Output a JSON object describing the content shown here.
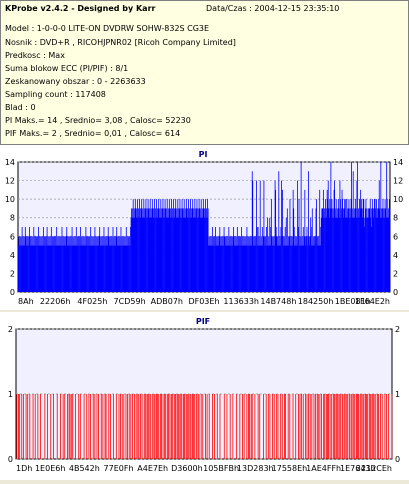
{
  "header": {
    "title": "KProbe v2.4.2 - Designed by Karr",
    "datetime": "Data/Czas : 2004-12-15 23:35:10",
    "lines": [
      "Model : 1-0-0-0 LITE-ON DVDRW SOHW-832S  CG3E",
      "Nosnik : DVD+R , RICOHJPNR02 [Ricoh Company Limited]",
      "Predkosc : Max",
      "Suma blokow ECC (PI/PIF) : 8/1",
      "Zeskanowany obszar : 0 - 2263633",
      "Sampling count : 117408",
      "Blad : 0",
      "PI Maks.= 14 , Srednio= 3,08 , Calosc= 52230",
      "PIF Maks.= 2 , Srednio= 0,01 , Calosc= 614"
    ]
  },
  "chart_data": [
    {
      "type": "bar",
      "title": "PI",
      "color": "#0000ff",
      "ylim": [
        0,
        14
      ],
      "yticks": [
        "0",
        "2",
        "4",
        "6",
        "8",
        "10",
        "12",
        "14"
      ],
      "xticks": [
        "8Ah",
        "22206h",
        "4F025h",
        "7CD59h",
        "ADB07h",
        "DF03Eh",
        "113633h",
        "14B748h",
        "184250h",
        "1BE081h",
        "1F64E2h"
      ],
      "series": [
        {
          "values": [
            5,
            6,
            5,
            6,
            5,
            6,
            5,
            7,
            5,
            6,
            5,
            6,
            5,
            7,
            6,
            5,
            6,
            5,
            6,
            5,
            6,
            7,
            5,
            6,
            5,
            6,
            5,
            6,
            5,
            7,
            6,
            5,
            6,
            5,
            6,
            5,
            6,
            5,
            7,
            5,
            6,
            5,
            6,
            5,
            6,
            5,
            6,
            7,
            5,
            6,
            5,
            6,
            5,
            6,
            7,
            5,
            6,
            5,
            6,
            5,
            6,
            5,
            7,
            5,
            6,
            5,
            6,
            5,
            6,
            5,
            6,
            5,
            7,
            5,
            6,
            5,
            6,
            5,
            6,
            5,
            6,
            5,
            7,
            5,
            6,
            5,
            6,
            5,
            6,
            5,
            6,
            7,
            5,
            6,
            5,
            6,
            5,
            6,
            5,
            6,
            5,
            7,
            5,
            6,
            5,
            6,
            5,
            6,
            5,
            7,
            5,
            6,
            5,
            6,
            5,
            6,
            5,
            7,
            5,
            6,
            5,
            6,
            5,
            6,
            5,
            6,
            5,
            7,
            6,
            5,
            6,
            5,
            6,
            5,
            6,
            5,
            7,
            5,
            6,
            5,
            6,
            5,
            6,
            5,
            7,
            5,
            6,
            5,
            6,
            5,
            6,
            5,
            6,
            7,
            5,
            6,
            5,
            6,
            5,
            6,
            5,
            7,
            5,
            6,
            5,
            6,
            5,
            6,
            5,
            7,
            6,
            5,
            6,
            5,
            6,
            5,
            6,
            5,
            7,
            5,
            6,
            5,
            6,
            5,
            6,
            7,
            5,
            6,
            5,
            6,
            5,
            6,
            5,
            7,
            5,
            6,
            5,
            6,
            5,
            6,
            5,
            6,
            5,
            7,
            5,
            6,
            5,
            6,
            5,
            6,
            5,
            7,
            8,
            9,
            8,
            9,
            10,
            8,
            9,
            8,
            10,
            9,
            8,
            9,
            10,
            8,
            9,
            8,
            10,
            9,
            8,
            9,
            10,
            8,
            9,
            8,
            10,
            9,
            8,
            9,
            10,
            8,
            9,
            8,
            10,
            9,
            8,
            9,
            10,
            8,
            9,
            8,
            10,
            9,
            8,
            9,
            10,
            8,
            9,
            8,
            10,
            9,
            8,
            9,
            10,
            8,
            9,
            8,
            10,
            9,
            8,
            9,
            10,
            8,
            9,
            8,
            10,
            9,
            8,
            9,
            10,
            8,
            9,
            8,
            10,
            9,
            8,
            9,
            10,
            8,
            9,
            8,
            10,
            9,
            8,
            9,
            10,
            8,
            9,
            8,
            10,
            9,
            8,
            9,
            10,
            8,
            9,
            8,
            10,
            9,
            8,
            9,
            10,
            8,
            9,
            8,
            10,
            9,
            8,
            9,
            10,
            8,
            9,
            8,
            10,
            9,
            8,
            9,
            10,
            8,
            9,
            8,
            10,
            9,
            8,
            9,
            10,
            8,
            9,
            8,
            10,
            9,
            8,
            9,
            10,
            8,
            9,
            8,
            10,
            9,
            8,
            9,
            10,
            8,
            9,
            8,
            10,
            9
          ]
        },
        {
          "values": [
            8,
            7,
            10,
            9,
            8,
            12,
            9,
            10,
            8,
            11,
            9,
            10,
            12,
            8,
            9,
            7,
            10,
            11,
            9,
            8,
            13,
            10,
            9,
            8,
            11,
            12,
            10,
            14,
            10,
            12,
            13,
            11,
            14,
            12,
            11,
            13,
            10,
            12,
            14,
            11,
            13,
            12,
            10,
            14,
            11,
            12,
            13,
            11,
            12,
            10
          ]
        }
      ]
    },
    {
      "type": "bar",
      "title": "PIF",
      "color": "#ff0000",
      "ylim": [
        0,
        2
      ],
      "yticks": [
        "0",
        "1",
        "2"
      ],
      "xticks": [
        "1Dh",
        "1E0E6h",
        "4B542h",
        "77E0Fh",
        "A4E7Eh",
        "D3600h",
        "105BFBh",
        "13D283h",
        "17558Eh",
        "1AE4FFh",
        "1E7643h",
        "2212CEh"
      ],
      "values": [
        0,
        1,
        0,
        0,
        1,
        0,
        1,
        0,
        0,
        0,
        1,
        0,
        0,
        1,
        0,
        0,
        0,
        0,
        1,
        0,
        0,
        1,
        0,
        0,
        0,
        1,
        0,
        0,
        0,
        0,
        0,
        1,
        0,
        0,
        0,
        1,
        0,
        0,
        0,
        0,
        1,
        0,
        0,
        0,
        0,
        1,
        0,
        0,
        0,
        0,
        0,
        0,
        0,
        1,
        0,
        0,
        0,
        0,
        1,
        0,
        0,
        0,
        0,
        0,
        1,
        0,
        0,
        0,
        0,
        1,
        0,
        0,
        0,
        0,
        0,
        0,
        1,
        0,
        0,
        0,
        0,
        0,
        1,
        0,
        0,
        0,
        0,
        1,
        0,
        0,
        1,
        0,
        0,
        0,
        0,
        1,
        0,
        0,
        1,
        0,
        1,
        0,
        0,
        1,
        0,
        1,
        0,
        0,
        0,
        0,
        1,
        0,
        0,
        0,
        0,
        0,
        1,
        0,
        0,
        1,
        0,
        0,
        0,
        0,
        0,
        0,
        1,
        0,
        0,
        0,
        0,
        1,
        0,
        0,
        0,
        1,
        0,
        0,
        1,
        0,
        0,
        0,
        0,
        1,
        0,
        0,
        1,
        0,
        0,
        0,
        1,
        0,
        0,
        1,
        0,
        0,
        0,
        0,
        1,
        0,
        0,
        1,
        0,
        0,
        0,
        1,
        0,
        1,
        0,
        0,
        0,
        0,
        1,
        0,
        0,
        1,
        0,
        0,
        0,
        0,
        0,
        1,
        0,
        0,
        0,
        0,
        1,
        0,
        0,
        0,
        0,
        1,
        0,
        0,
        1,
        0,
        0,
        1,
        0,
        0,
        1,
        0,
        0,
        0,
        1,
        0,
        0,
        1,
        0,
        0,
        1,
        0,
        0,
        1,
        0,
        0,
        1,
        0,
        0,
        0,
        1,
        0,
        0,
        1,
        0,
        0,
        1,
        0,
        1,
        0,
        0,
        1,
        0,
        0,
        1,
        0,
        0,
        0,
        1,
        0,
        1,
        0,
        0,
        1,
        0,
        1,
        0,
        1,
        0,
        0,
        1,
        0,
        0,
        1,
        0,
        0,
        1,
        0,
        1,
        0,
        0,
        1,
        0,
        1,
        0,
        1,
        0,
        0,
        1,
        0,
        1,
        0,
        0,
        1,
        0,
        0,
        1,
        0,
        1,
        0,
        0,
        1,
        0,
        1,
        0,
        0,
        1,
        0,
        0,
        1,
        0,
        1,
        0,
        0,
        1,
        0,
        1,
        0,
        0,
        1,
        0,
        1,
        0,
        1,
        0,
        0,
        1,
        0,
        1,
        0,
        0,
        1,
        0,
        1,
        0,
        0,
        1,
        0,
        1,
        0,
        1,
        0,
        0,
        1,
        0,
        1,
        0,
        0,
        1,
        0,
        1,
        0,
        1,
        0
      ]
    }
  ]
}
